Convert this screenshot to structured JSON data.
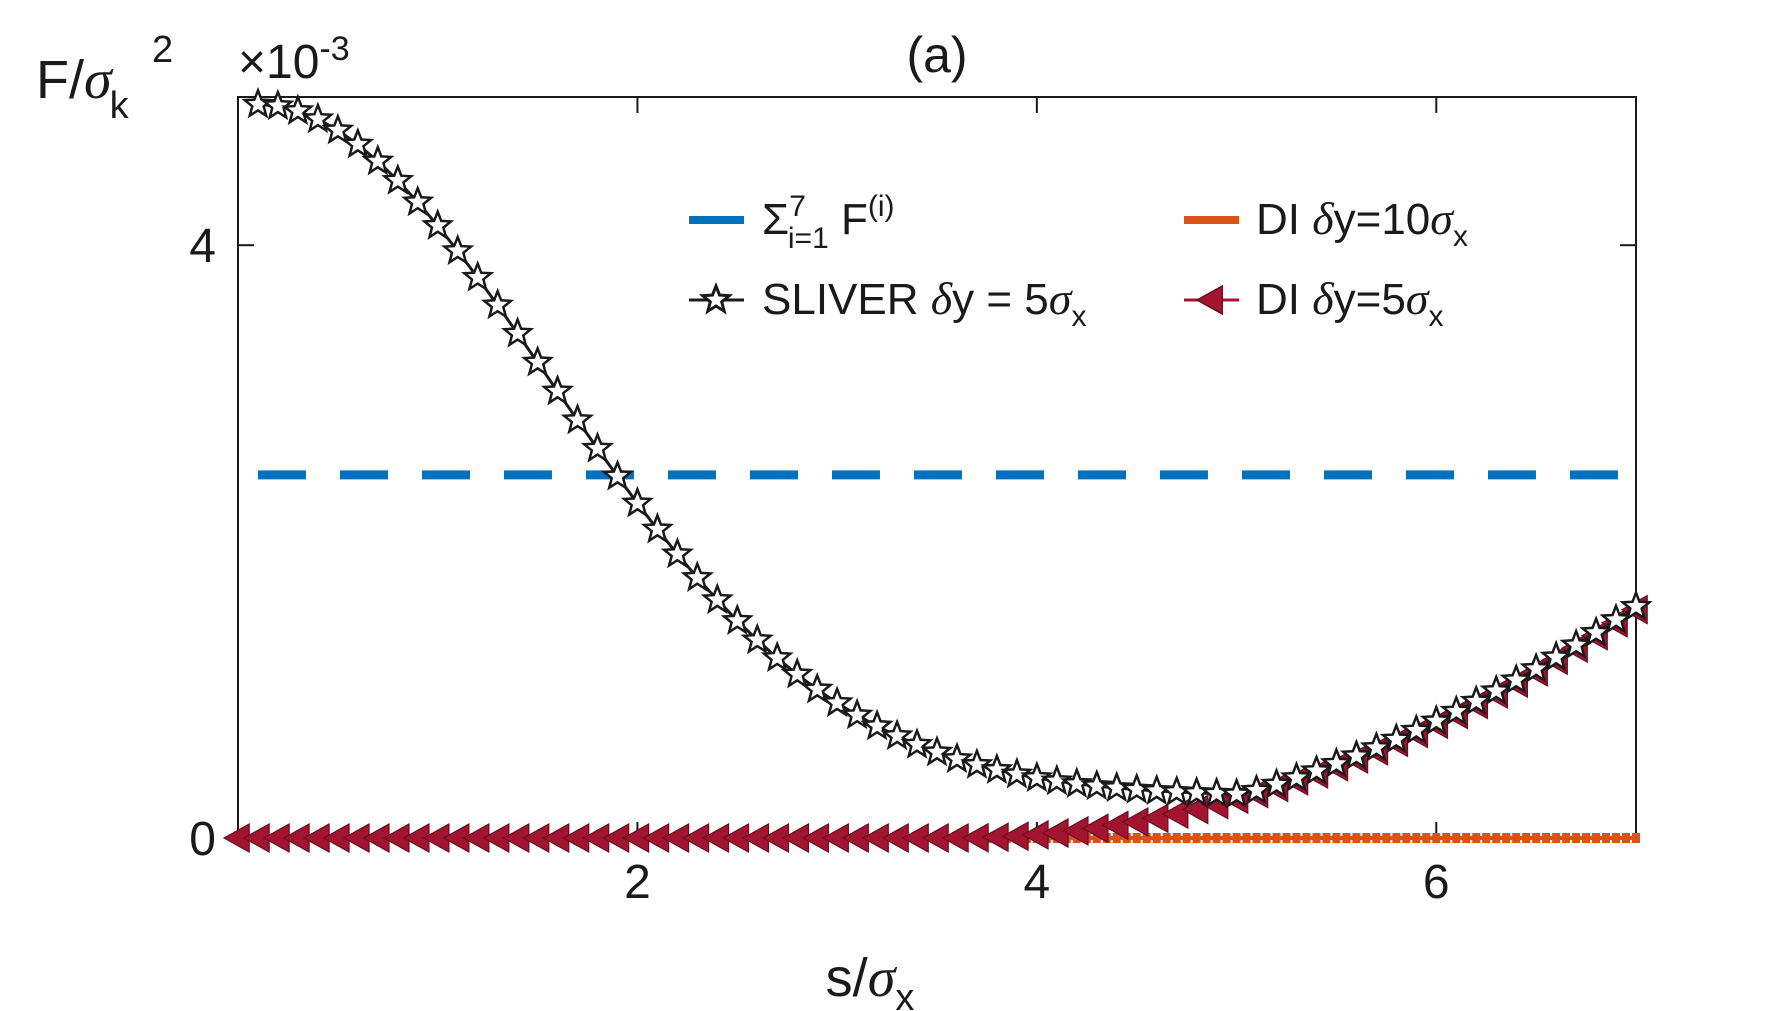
{
  "chart_data": {
    "type": "line",
    "title": "(a)",
    "xlabel": {
      "base": "s/",
      "sym": "σ",
      "sub": "x"
    },
    "ylabel": {
      "base": "F/",
      "sym": "σ",
      "sub": "k",
      "sup": "2"
    },
    "y_exponent": {
      "base": "×10",
      "sup": "-3"
    },
    "xlim": [
      0,
      7
    ],
    "ylim": [
      0,
      5
    ],
    "xticks": [
      2,
      4,
      6
    ],
    "xtick_labels": [
      "2",
      "4",
      "6"
    ],
    "yticks": [
      0,
      4
    ],
    "ytick_labels": [
      "0",
      "4"
    ],
    "y_scale": 0.001,
    "grid": false,
    "legend_location": "top-right",
    "colors": {
      "sum": "#0072BD",
      "sliver": "#1a1a1a",
      "di10": "#D95319",
      "di5": "#A2142F"
    },
    "series": [
      {
        "id": "sum",
        "name_parts": {
          "sym": "Σ",
          "sup": "7",
          "sub": "i=1",
          "tail": " F",
          "tail_sup": "(i)"
        },
        "style": "dashed",
        "x": [
          0.1,
          7.0
        ],
        "y": [
          2.45,
          2.45
        ]
      },
      {
        "id": "sliver",
        "name_parts": {
          "pre": "SLIVER ",
          "sym": "δ",
          "mid": "y = 5",
          "sym2": "σ",
          "sub": "x"
        },
        "style": "star-markers",
        "model": {
          "peak": 4.95,
          "floor": 0.28,
          "center": 4.8,
          "width": 2.05,
          "x_start": 0.1,
          "x_end": 7.0,
          "step": 0.1
        }
      },
      {
        "id": "di10",
        "name_parts": {
          "pre": "DI ",
          "sym": "δ",
          "mid": "y=10",
          "sym2": "σ",
          "sub": "x"
        },
        "style": "square-markers",
        "model": {
          "x_start": 3.7,
          "x_end": 7.0,
          "step": 0.05,
          "value": 0.0
        }
      },
      {
        "id": "di5",
        "name_parts": {
          "pre": "DI ",
          "sym": "δ",
          "mid": "y=5",
          "sym2": "σ",
          "sub": "x"
        },
        "style": "triangle-left-markers",
        "model": {
          "x_start": 0.0,
          "x_end": 7.0,
          "step": 0.1,
          "onset": 3.6,
          "amplitude": 0.1333,
          "power": 2.0
        }
      }
    ]
  }
}
